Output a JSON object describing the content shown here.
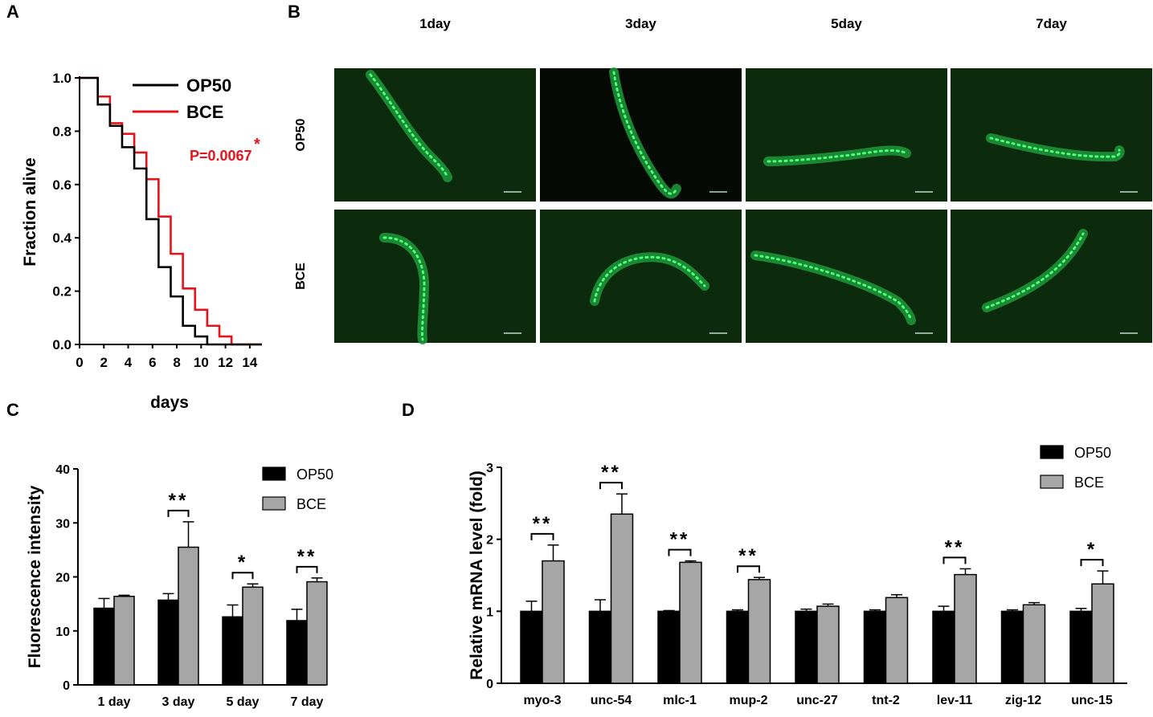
{
  "panel_labels": [
    "A",
    "B",
    "C",
    "D"
  ],
  "chart_data": [
    {
      "panel": "A",
      "type": "line",
      "subtype": "survival-step",
      "xlabel": "days",
      "ylabel": "Fraction alive",
      "xlim": [
        0,
        15
      ],
      "ylim": [
        0,
        1
      ],
      "xticks": [
        0,
        2,
        4,
        6,
        8,
        10,
        12,
        14
      ],
      "yticks": [
        "0.0",
        "0.2",
        "0.4",
        "0.6",
        "0.8",
        "1.0"
      ],
      "series": [
        {
          "name": "OP50",
          "color": "#000000",
          "x": [
            0,
            1.5,
            2.5,
            3.5,
            4.5,
            5.5,
            6.5,
            7.5,
            8.5,
            9.5,
            10.5,
            15
          ],
          "y": [
            1.0,
            0.9,
            0.82,
            0.74,
            0.66,
            0.47,
            0.29,
            0.18,
            0.07,
            0.03,
            0.0,
            0.0
          ]
        },
        {
          "name": "BCE",
          "color": "#e8131a",
          "x": [
            0,
            1.5,
            2.5,
            3.5,
            4.5,
            5.5,
            6.5,
            7.5,
            8.5,
            9.5,
            10.5,
            11.5,
            12.5,
            15
          ],
          "y": [
            1.0,
            0.93,
            0.83,
            0.79,
            0.72,
            0.62,
            0.48,
            0.34,
            0.21,
            0.13,
            0.07,
            0.03,
            0.0,
            0.0
          ]
        }
      ],
      "annotation": {
        "text": "P=0.0067",
        "mark": "*",
        "color": "#e8131a"
      }
    },
    {
      "panel": "C",
      "type": "bar",
      "categories": [
        "1 day",
        "3 day",
        "5 day",
        "7 day"
      ],
      "xlabel": "",
      "ylabel": "Fluorescence intensity",
      "ylim": [
        0,
        40
      ],
      "yticks": [
        "0",
        "10",
        "20",
        "30",
        "40"
      ],
      "series": [
        {
          "name": "OP50",
          "color": "#000000",
          "values": [
            14.2,
            15.7,
            12.6,
            11.9
          ],
          "errors": [
            1.8,
            1.2,
            2.2,
            2.1
          ]
        },
        {
          "name": "BCE",
          "color": "#a6a6a6",
          "values": [
            16.4,
            25.5,
            18.1,
            19.1
          ],
          "errors": [
            0.2,
            4.7,
            0.6,
            0.7
          ]
        }
      ],
      "significance": [
        "",
        "**",
        "*",
        "**"
      ]
    },
    {
      "panel": "D",
      "type": "bar",
      "categories": [
        "myo-3",
        "unc-54",
        "mlc-1",
        "mup-2",
        "unc-27",
        "tnt-2",
        "lev-11",
        "zig-12",
        "unc-15"
      ],
      "xlabel": "",
      "ylabel": "Relative mRNA level (fold)",
      "ylim": [
        0,
        3
      ],
      "yticks": [
        "0",
        "1",
        "2",
        "3"
      ],
      "series": [
        {
          "name": "OP50",
          "color": "#000000",
          "values": [
            1.0,
            1.0,
            1.0,
            1.0,
            1.0,
            1.0,
            1.0,
            1.0,
            1.0
          ],
          "errors": [
            0.14,
            0.16,
            0.01,
            0.02,
            0.03,
            0.02,
            0.07,
            0.02,
            0.04
          ]
        },
        {
          "name": "BCE",
          "color": "#a6a6a6",
          "values": [
            1.7,
            2.35,
            1.68,
            1.44,
            1.07,
            1.19,
            1.51,
            1.09,
            1.38
          ],
          "errors": [
            0.22,
            0.28,
            0.02,
            0.03,
            0.03,
            0.04,
            0.08,
            0.03,
            0.18
          ]
        }
      ],
      "significance": [
        "**",
        "**",
        "**",
        "**",
        "",
        "",
        "**",
        "",
        "*"
      ]
    }
  ],
  "microscopy": {
    "panel": "B",
    "columns": [
      "1day",
      "3day",
      "5day",
      "7day"
    ],
    "rows": [
      "OP50",
      "BCE"
    ]
  }
}
